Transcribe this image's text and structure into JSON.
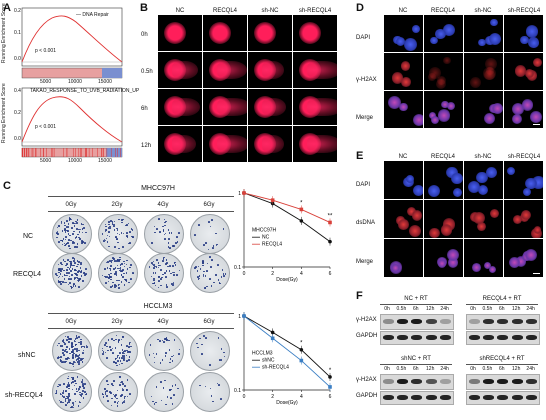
{
  "panels": {
    "A": "A",
    "B": "B",
    "C": "C",
    "D": "D",
    "E": "E",
    "F": "F"
  },
  "panelA": {
    "plot1": {
      "legend": "DNA Repair",
      "pvalue": "p < 0.001",
      "ylabel": "Running Enrichment Score",
      "ticks": [
        "5000",
        "10000",
        "15000"
      ],
      "yticks": [
        "0.2",
        "0.1",
        "0.0"
      ]
    },
    "plot2": {
      "legend": "TAKAO_RESPONSE_TO_UVB_RADIATION_UP",
      "pvalue": "p < 0.001",
      "ylabel": "Running Enrichment Score",
      "ticks": [
        "5000",
        "10000",
        "15000"
      ],
      "yticks": [
        "0.4",
        "0.2",
        "0.0"
      ]
    }
  },
  "panelB": {
    "columns": [
      "NC",
      "RECQL4",
      "sh-NC",
      "sh-RECQL4"
    ],
    "rows": [
      "0h",
      "0.5h",
      "6h",
      "12h"
    ]
  },
  "panelC": {
    "group1": {
      "cell_line": "MHCC97H",
      "doses": [
        "0Gy",
        "2Gy",
        "4Gy",
        "6Gy"
      ],
      "rows": [
        "NC",
        "RECQL4"
      ]
    },
    "group2": {
      "cell_line": "HCCLM3",
      "doses": [
        "0Gy",
        "2Gy",
        "4Gy",
        "6Gy"
      ],
      "rows": [
        "shNC",
        "sh-RECQL4"
      ]
    }
  },
  "chart_data": [
    {
      "type": "line",
      "title": "MHCC97H",
      "xlabel": "Dose(Gy)",
      "ylabel": "",
      "ylog": true,
      "ylim": [
        0.1,
        1
      ],
      "x": [
        0,
        2,
        4,
        6
      ],
      "yticks": [
        "1",
        "0.1"
      ],
      "xticks": [
        "0",
        "2",
        "4",
        "6"
      ],
      "series": [
        {
          "name": "NC",
          "values": [
            1,
            0.72,
            0.42,
            0.22
          ],
          "color": "#111111"
        },
        {
          "name": "RECQL4",
          "values": [
            1,
            0.8,
            0.6,
            0.4
          ],
          "color": "#d9413a"
        }
      ],
      "annotations": [
        "*",
        "**"
      ]
    },
    {
      "type": "line",
      "title": "HCCLM3",
      "xlabel": "Dose(Gy)",
      "ylabel": "",
      "ylog": true,
      "ylim": [
        0.1,
        1
      ],
      "x": [
        0,
        2,
        4,
        6
      ],
      "yticks": [
        "1",
        "0.1"
      ],
      "xticks": [
        "0",
        "2",
        "4",
        "6"
      ],
      "series": [
        {
          "name": "shNC",
          "values": [
            1,
            0.6,
            0.35,
            0.15
          ],
          "color": "#111111"
        },
        {
          "name": "sh-RECQL4",
          "values": [
            1,
            0.5,
            0.25,
            0.11
          ],
          "color": "#3b7fc4"
        }
      ],
      "annotations": [
        "*",
        "*"
      ]
    }
  ],
  "panelD": {
    "columns": [
      "NC",
      "RECQL4",
      "sh-NC",
      "sh-RECQL4"
    ],
    "rows": [
      "DAPI",
      "γ-H2AX",
      "Merge"
    ]
  },
  "panelE": {
    "columns": [
      "NC",
      "RECQL4",
      "sh-NC",
      "sh-RECQL4"
    ],
    "rows": [
      "DAPI",
      "dsDNA",
      "Merge"
    ]
  },
  "panelF": {
    "blot1": {
      "title": "NC + RT",
      "times": [
        "0h",
        "0.5h",
        "6h",
        "12h",
        "24h"
      ]
    },
    "blot2": {
      "title": "RECQL4 + RT",
      "times": [
        "0h",
        "0.5h",
        "6h",
        "12h",
        "24h"
      ]
    },
    "blot3": {
      "title": "shNC + RT",
      "times": [
        "0h",
        "0.5h",
        "6h",
        "12h",
        "24h"
      ]
    },
    "blot4": {
      "title": "shRECQL4 + RT",
      "times": [
        "0h",
        "0.5h",
        "6h",
        "12h",
        "24h"
      ]
    },
    "rows": [
      "γ-H2AX",
      "GAPDH"
    ]
  },
  "colors": {
    "comet": "#ff1e5a",
    "dapi": "#3a4fd8",
    "h2ax": "#e03030",
    "nc_line": "#111111",
    "recql4_line": "#d9413a",
    "sh_line": "#3b7fc4"
  }
}
